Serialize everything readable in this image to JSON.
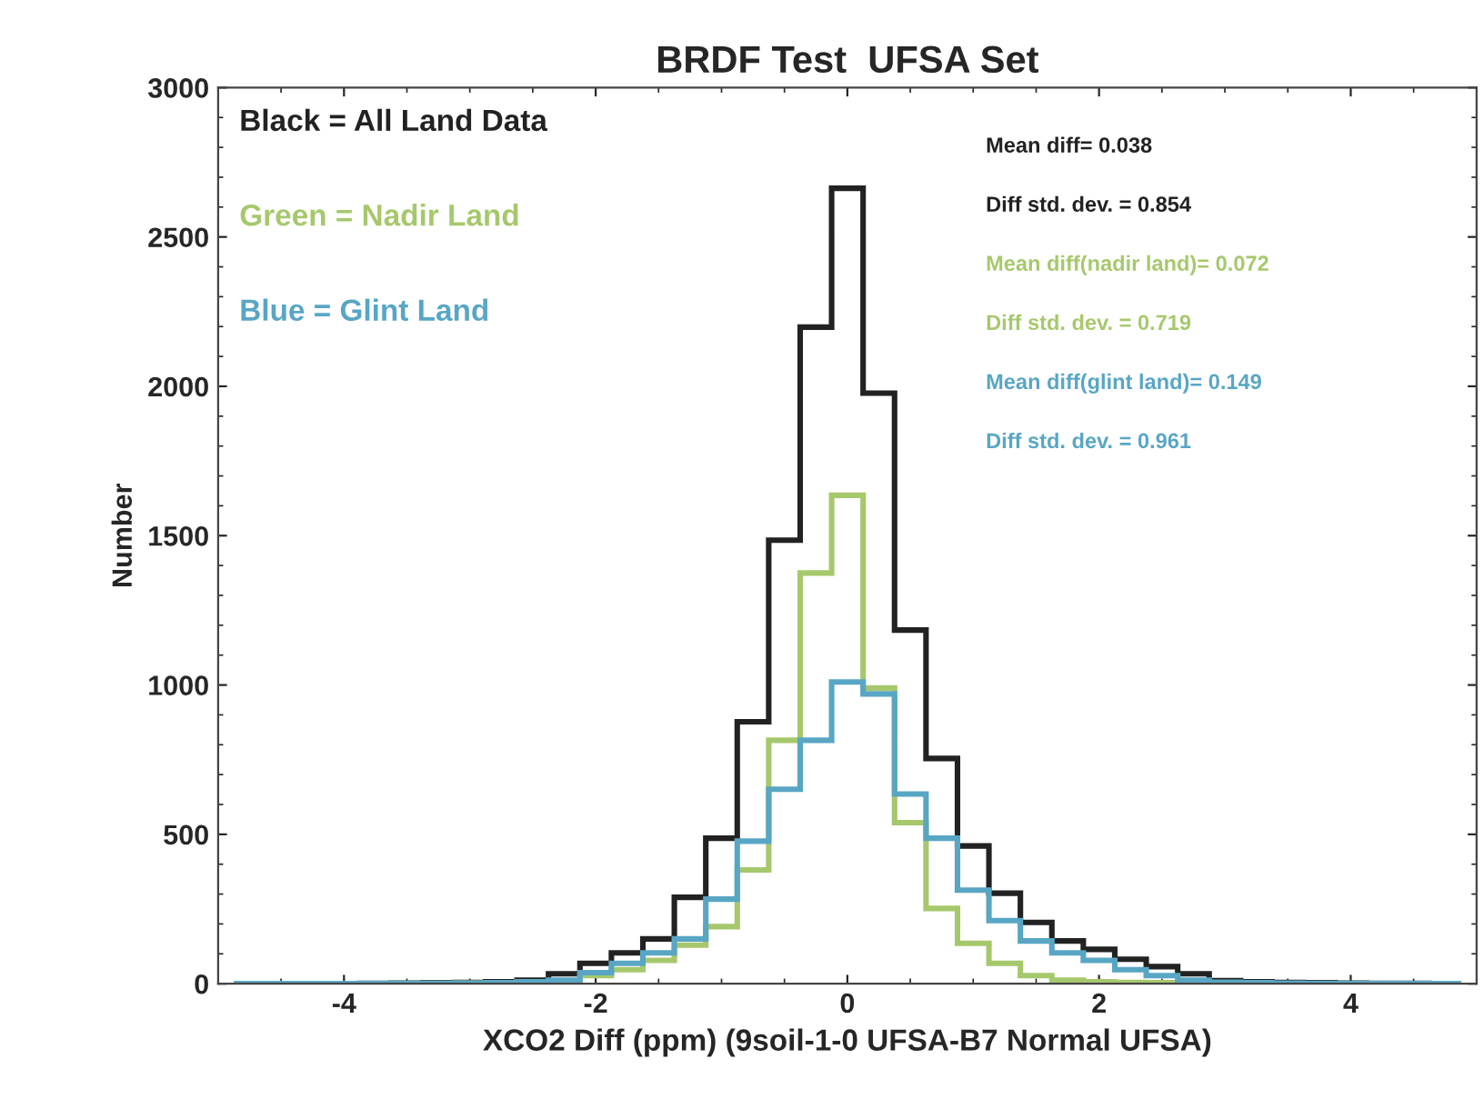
{
  "chart_data": {
    "type": "histogram",
    "title": "BRDF Test  UFSA Set",
    "xlabel": "XCO2 Diff (ppm) (9soil-1-0 UFSA-B7 Normal UFSA)",
    "ylabel": "Number",
    "bins": [
      -4.875,
      -4.625,
      -4.375,
      -4.125,
      -3.875,
      -3.625,
      -3.375,
      -3.125,
      -2.875,
      -2.625,
      -2.375,
      -2.125,
      -1.875,
      -1.625,
      -1.375,
      -1.125,
      -0.875,
      -0.625,
      -0.375,
      -0.125,
      0.125,
      0.375,
      0.625,
      0.875,
      1.125,
      1.375,
      1.625,
      1.875,
      2.125,
      2.375,
      2.625,
      2.875,
      3.125,
      3.375,
      3.625,
      3.875,
      4.125,
      4.375,
      4.625,
      4.875
    ],
    "series": [
      {
        "name": "Black = All Land Data",
        "color": "#222222",
        "values": [
          0,
          0,
          0,
          0,
          1,
          2,
          3,
          4,
          6,
          12,
          33,
          68,
          103,
          150,
          289,
          487,
          877,
          1485,
          2198,
          2663,
          1977,
          1184,
          754,
          461,
          303,
          205,
          143,
          115,
          82,
          57,
          33,
          10,
          6,
          4,
          3,
          2,
          1,
          1,
          0
        ]
      },
      {
        "name": "Green = Nadir Land",
        "color": "#a6c86c",
        "values": [
          0,
          0,
          0,
          0,
          0,
          1,
          1,
          2,
          3,
          5,
          8,
          27,
          47,
          78,
          129,
          191,
          381,
          815,
          1375,
          1635,
          990,
          539,
          252,
          135,
          68,
          27,
          12,
          6,
          4,
          3,
          2,
          1,
          1,
          0,
          0,
          0,
          0,
          0,
          0
        ]
      },
      {
        "name": "Blue = Glint Land",
        "color": "#58a6c4",
        "values": [
          0,
          0,
          0,
          0,
          0,
          1,
          1,
          2,
          3,
          6,
          12,
          37,
          68,
          103,
          150,
          283,
          477,
          651,
          815,
          1010,
          970,
          635,
          487,
          313,
          211,
          143,
          103,
          78,
          47,
          27,
          12,
          5,
          3,
          2,
          1,
          1,
          0,
          0,
          0
        ]
      }
    ],
    "annotations": [
      "Mean diff= 0.038",
      "Diff std. dev. = 0.854",
      "Mean diff(nadir land)= 0.072",
      "Diff std. dev. = 0.719",
      "Mean diff(glint land)= 0.149",
      "Diff std. dev. = 0.961"
    ],
    "xlim": [
      -5,
      5
    ],
    "xticks": [
      -4,
      -2,
      0,
      2,
      4
    ],
    "ylim": [
      0,
      3000
    ],
    "yticks": [
      0,
      500,
      1000,
      1500,
      2000,
      2500,
      3000
    ],
    "grid": false,
    "legend": "top left"
  }
}
